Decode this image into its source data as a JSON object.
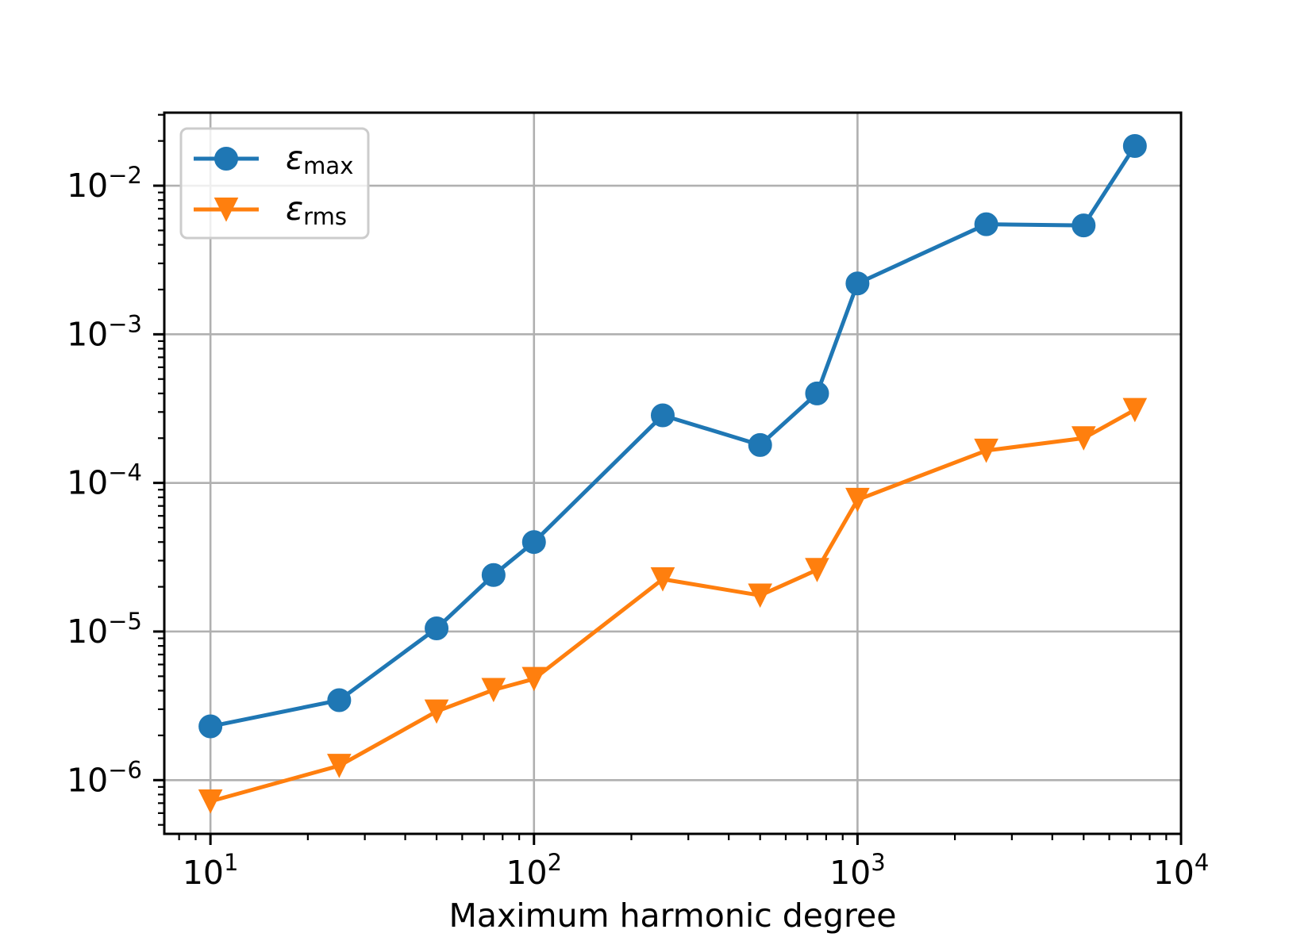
{
  "chart_data": {
    "type": "line",
    "x_scale": "log",
    "y_scale": "log",
    "xlabel": "Maximum harmonic degree",
    "xlim": [
      7.2,
      10000
    ],
    "ylim": [
      4.35e-07,
      0.031
    ],
    "grid": true,
    "legend_position": "upper left",
    "x": [
      10,
      25,
      50,
      75,
      100,
      250,
      500,
      750,
      1000,
      2500,
      5000,
      7200
    ],
    "series": [
      {
        "symbol": "ε",
        "subscript": "max",
        "color": "#1f77b4",
        "marker": "circle",
        "values": [
          2.3e-06,
          3.45e-06,
          1.05e-05,
          2.4e-05,
          4e-05,
          0.000285,
          0.00018,
          0.0004,
          0.0022,
          0.0055,
          0.0054,
          0.0185
        ]
      },
      {
        "symbol": "ε",
        "subscript": "rms",
        "color": "#ff7f0e",
        "marker": "triangle-down",
        "values": [
          7.2e-07,
          1.25e-06,
          2.9e-06,
          4.05e-06,
          4.8e-06,
          2.25e-05,
          1.75e-05,
          2.6e-05,
          7.7e-05,
          0.000165,
          0.0002,
          0.00031
        ]
      }
    ],
    "x_ticks": [
      {
        "value": 10,
        "base": "10",
        "exp": "1"
      },
      {
        "value": 100,
        "base": "10",
        "exp": "2"
      },
      {
        "value": 1000,
        "base": "10",
        "exp": "3"
      },
      {
        "value": 10000,
        "base": "10",
        "exp": "4"
      }
    ],
    "y_ticks": [
      {
        "value": 0.01,
        "base": "10",
        "exp": "−2"
      },
      {
        "value": 0.001,
        "base": "10",
        "exp": "−3"
      },
      {
        "value": 0.0001,
        "base": "10",
        "exp": "−4"
      },
      {
        "value": 1e-05,
        "base": "10",
        "exp": "−5"
      },
      {
        "value": 1e-06,
        "base": "10",
        "exp": "−6"
      }
    ]
  }
}
